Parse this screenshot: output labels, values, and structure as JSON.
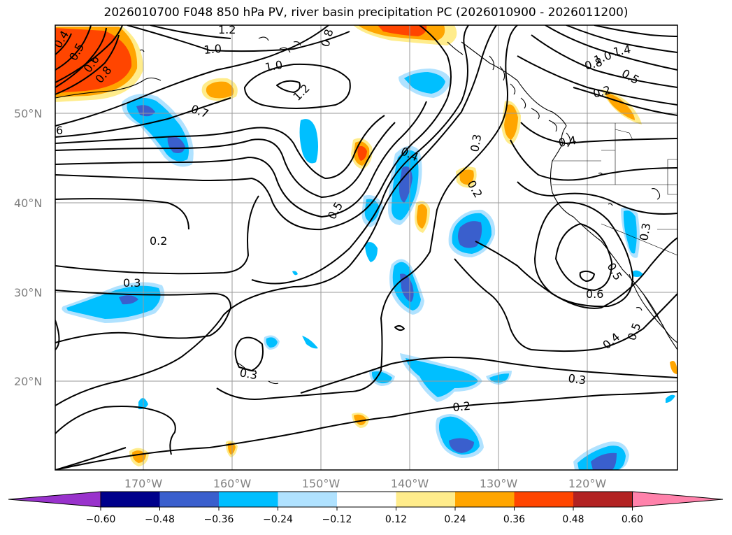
{
  "title": "2026010700 F048 850 hPa PV, river basin precipitation PC (2026010900 - 2026011200)",
  "lat_labels": [
    "50°N",
    "40°N",
    "30°N",
    "20°N"
  ],
  "lon_labels": [
    "170°W",
    "160°W",
    "150°W",
    "140°W",
    "130°W",
    "120°W"
  ],
  "colorbar": {
    "colors": [
      "#9932cc",
      "#00008b",
      "#3a5fcd",
      "#00bfff",
      "#b0e2ff",
      "#ffffff",
      "#ffec8b",
      "#ffa500",
      "#ff4500",
      "#b22222",
      "#ff82ab"
    ],
    "tick_labels": [
      "−0.60",
      "−0.48",
      "−0.36",
      "−0.24",
      "−0.12",
      "0.12",
      "0.24",
      "0.36",
      "0.48",
      "0.60"
    ]
  },
  "contour_labels": {
    "c1": "0.4",
    "c2": "0.5",
    "c3": "0.6",
    "c4": "0.8",
    "c5": "1.2",
    "c6": "1.0",
    "c7": "0.8",
    "c8": "1.0",
    "c9": "1.2",
    "c10": "0.7",
    "c11": "6",
    "c12": "0.4",
    "c13": "0.3",
    "c14": "0.2",
    "c15": "0.5",
    "c16": "0.2",
    "c17": "0.3",
    "c18": "0.5",
    "c19": "0.6",
    "c20": "0.4",
    "c21": "0.5",
    "c22": "0.3",
    "c23": "0.3",
    "c24": "0.2",
    "c25": "0.3",
    "c26": "1.4",
    "c27": "1.0",
    "c28": "0.8",
    "c29": "0.5",
    "c30": "0.2",
    "c31": "0.4"
  }
}
